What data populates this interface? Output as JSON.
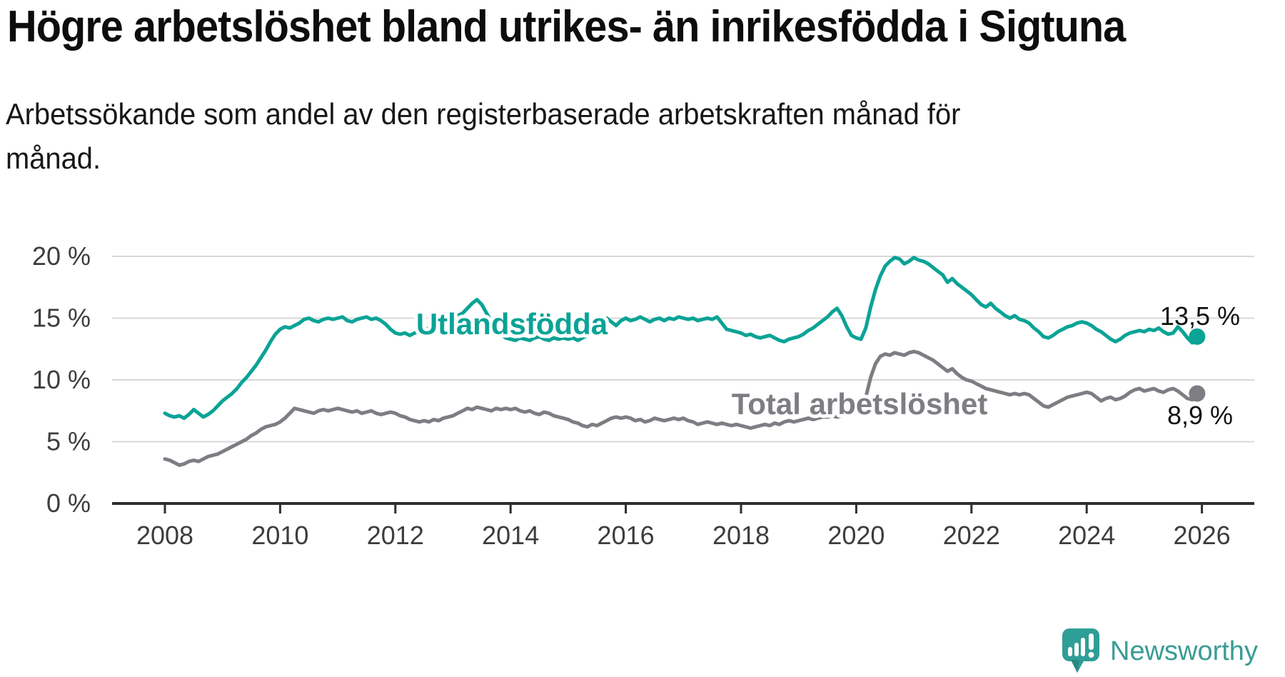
{
  "title": "Högre arbetslöshet bland utrikes- än inrikesfödda i Sigtuna",
  "subtitle_lines": [
    "Arbetssökande som andel av den registerbaserade arbetskraften månad för",
    "månad."
  ],
  "chart_data": {
    "type": "line",
    "unit": "%",
    "x_start_year": 2008,
    "points_per_year": 12,
    "xlim": [
      2008,
      2026
    ],
    "ylim": [
      0,
      20
    ],
    "grid": "horizontal",
    "legend": "inline-labels",
    "x_ticks": [
      2008,
      2010,
      2012,
      2014,
      2016,
      2018,
      2020,
      2022,
      2024,
      2026
    ],
    "y_ticks": [
      {
        "value": 0,
        "label": "0 %"
      },
      {
        "value": 5,
        "label": "5 %"
      },
      {
        "value": 10,
        "label": "10 %"
      },
      {
        "value": 15,
        "label": "15 %"
      },
      {
        "value": 20,
        "label": "20 %"
      }
    ],
    "series": [
      {
        "name": "Utlandsfödda",
        "color": "#0aa396",
        "end_label": "13,5 %",
        "latest_value": 13.5,
        "values": [
          7.3,
          7.1,
          7.0,
          7.1,
          6.9,
          7.2,
          7.6,
          7.3,
          7.0,
          7.2,
          7.5,
          7.9,
          8.3,
          8.6,
          8.9,
          9.3,
          9.8,
          10.2,
          10.7,
          11.2,
          11.8,
          12.4,
          13.1,
          13.7,
          14.1,
          14.3,
          14.2,
          14.4,
          14.6,
          14.9,
          15.0,
          14.8,
          14.7,
          14.9,
          15.0,
          14.9,
          15.0,
          15.1,
          14.8,
          14.7,
          14.9,
          15.0,
          15.1,
          14.9,
          15.0,
          14.8,
          14.5,
          14.1,
          13.8,
          13.7,
          13.8,
          13.6,
          13.8,
          13.9,
          14.0,
          14.2,
          14.4,
          14.5,
          14.6,
          14.8,
          15.0,
          15.2,
          15.4,
          15.8,
          16.2,
          16.5,
          16.1,
          15.4,
          14.7,
          14.1,
          13.7,
          13.4,
          13.3,
          13.2,
          13.4,
          13.3,
          13.2,
          13.4,
          13.5,
          13.3,
          13.2,
          13.4,
          13.3,
          13.4,
          13.3,
          13.4,
          13.2,
          13.4,
          13.6,
          14.0,
          14.4,
          14.8,
          15.0,
          14.7,
          14.4,
          14.8,
          15.0,
          14.8,
          14.9,
          15.1,
          14.9,
          14.7,
          14.9,
          15.0,
          14.8,
          15.0,
          14.9,
          15.1,
          15.0,
          14.9,
          15.0,
          14.8,
          14.9,
          15.0,
          14.9,
          15.1,
          14.6,
          14.1,
          14.0,
          13.9,
          13.8,
          13.6,
          13.7,
          13.5,
          13.4,
          13.5,
          13.6,
          13.4,
          13.2,
          13.1,
          13.3,
          13.4,
          13.5,
          13.7,
          14.0,
          14.2,
          14.5,
          14.8,
          15.1,
          15.5,
          15.8,
          15.2,
          14.3,
          13.6,
          13.4,
          13.3,
          14.2,
          15.9,
          17.3,
          18.4,
          19.2,
          19.6,
          19.9,
          19.8,
          19.4,
          19.6,
          19.9,
          19.7,
          19.6,
          19.4,
          19.1,
          18.8,
          18.5,
          17.9,
          18.2,
          17.8,
          17.5,
          17.2,
          16.9,
          16.5,
          16.1,
          15.9,
          16.2,
          15.8,
          15.5,
          15.2,
          15.0,
          15.2,
          14.9,
          14.8,
          14.6,
          14.2,
          13.9,
          13.5,
          13.4,
          13.6,
          13.9,
          14.1,
          14.3,
          14.4,
          14.6,
          14.7,
          14.6,
          14.4,
          14.1,
          13.9,
          13.6,
          13.3,
          13.1,
          13.3,
          13.6,
          13.8,
          13.9,
          14.0,
          13.9,
          14.1,
          14.0,
          14.2,
          13.9,
          13.7,
          13.8,
          14.3,
          13.9,
          13.4,
          13.0,
          13.5
        ]
      },
      {
        "name": "Total arbetslöshet",
        "color": "#7e7d83",
        "end_label": "8,9 %",
        "latest_value": 8.9,
        "values": [
          3.6,
          3.5,
          3.3,
          3.1,
          3.2,
          3.4,
          3.5,
          3.4,
          3.6,
          3.8,
          3.9,
          4.0,
          4.2,
          4.4,
          4.6,
          4.8,
          5.0,
          5.2,
          5.5,
          5.7,
          6.0,
          6.2,
          6.3,
          6.4,
          6.6,
          6.9,
          7.3,
          7.7,
          7.6,
          7.5,
          7.4,
          7.3,
          7.5,
          7.6,
          7.5,
          7.6,
          7.7,
          7.6,
          7.5,
          7.4,
          7.5,
          7.3,
          7.4,
          7.5,
          7.3,
          7.2,
          7.3,
          7.4,
          7.3,
          7.1,
          7.0,
          6.8,
          6.7,
          6.6,
          6.7,
          6.6,
          6.8,
          6.7,
          6.9,
          7.0,
          7.1,
          7.3,
          7.5,
          7.7,
          7.6,
          7.8,
          7.7,
          7.6,
          7.5,
          7.7,
          7.6,
          7.7,
          7.6,
          7.7,
          7.5,
          7.4,
          7.5,
          7.3,
          7.2,
          7.4,
          7.3,
          7.1,
          7.0,
          6.9,
          6.8,
          6.6,
          6.5,
          6.3,
          6.2,
          6.4,
          6.3,
          6.5,
          6.7,
          6.9,
          7.0,
          6.9,
          7.0,
          6.9,
          6.7,
          6.8,
          6.6,
          6.7,
          6.9,
          6.8,
          6.7,
          6.8,
          6.9,
          6.8,
          6.9,
          6.7,
          6.6,
          6.4,
          6.5,
          6.6,
          6.5,
          6.4,
          6.5,
          6.4,
          6.3,
          6.4,
          6.3,
          6.2,
          6.1,
          6.2,
          6.3,
          6.4,
          6.3,
          6.5,
          6.4,
          6.6,
          6.7,
          6.6,
          6.7,
          6.8,
          6.9,
          6.8,
          6.9,
          7.0,
          7.0,
          7.1,
          7.0,
          7.1,
          7.2,
          7.3,
          7.4,
          7.6,
          8.6,
          10.2,
          11.3,
          11.9,
          12.1,
          12.0,
          12.2,
          12.1,
          12.0,
          12.2,
          12.3,
          12.2,
          12.0,
          11.8,
          11.6,
          11.3,
          11.0,
          10.7,
          10.9,
          10.5,
          10.2,
          10.0,
          9.9,
          9.7,
          9.5,
          9.3,
          9.2,
          9.1,
          9.0,
          8.9,
          8.8,
          8.9,
          8.8,
          8.9,
          8.8,
          8.5,
          8.2,
          7.9,
          7.8,
          8.0,
          8.2,
          8.4,
          8.6,
          8.7,
          8.8,
          8.9,
          9.0,
          8.9,
          8.6,
          8.3,
          8.5,
          8.6,
          8.4,
          8.5,
          8.7,
          9.0,
          9.2,
          9.3,
          9.1,
          9.2,
          9.3,
          9.1,
          9.0,
          9.2,
          9.3,
          9.1,
          8.8,
          8.5,
          8.4,
          8.9
        ]
      }
    ]
  },
  "logo": {
    "text": "Newsworthy",
    "color": "#399c94",
    "icon_color": "#2f9e96"
  },
  "colors": {
    "background": "#ffffff",
    "grid": "#d8d8d8",
    "axis": "#2e2e2e",
    "tick_label": "#3d3d3d",
    "end_label": "#111111",
    "title": "#0d0d0d"
  }
}
